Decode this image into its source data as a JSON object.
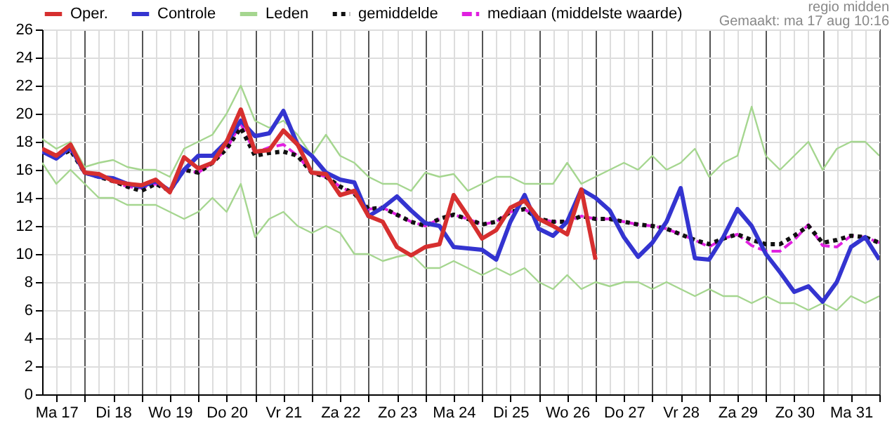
{
  "chart_data": {
    "type": "line",
    "annotations": [
      "regio midden",
      "Gemaakt: ma 17 aug 10:16"
    ],
    "categories": [
      null,
      "Ma 17",
      null,
      null,
      null,
      "Di 18",
      null,
      null,
      null,
      "Wo 19",
      null,
      null,
      null,
      "Do 20",
      null,
      null,
      null,
      "Vr 21",
      null,
      null,
      null,
      "Za 22",
      null,
      null,
      null,
      "Zo 23",
      null,
      null,
      null,
      "Ma 24",
      null,
      null,
      null,
      "Di 25",
      null,
      null,
      null,
      "Wo 26",
      null,
      null,
      null,
      "Do 27",
      null,
      null,
      null,
      "Vr 28",
      null,
      null,
      null,
      "Za 29",
      null,
      null,
      null,
      "Zo 30",
      null,
      null,
      null,
      "Ma 31",
      null,
      null
    ],
    "ylim": [
      0,
      26
    ],
    "yticks": [
      0,
      2,
      4,
      6,
      8,
      10,
      12,
      14,
      16,
      18,
      20,
      22,
      24,
      26
    ],
    "grid": true,
    "legend": "top",
    "series": [
      {
        "name": "Oper.",
        "color": "#d62f2f",
        "values": [
          17.5,
          17.0,
          17.8,
          15.8,
          15.7,
          15.2,
          15.0,
          14.9,
          15.3,
          14.4,
          16.9,
          16.1,
          16.5,
          18.0,
          20.3,
          17.3,
          17.4,
          18.8,
          17.8,
          15.8,
          15.7,
          14.2,
          14.5,
          12.7,
          12.3,
          10.5,
          9.9,
          10.5,
          10.7,
          14.2,
          12.7,
          11.1,
          11.7,
          13.3,
          13.8,
          12.5,
          12.0,
          11.4,
          14.6,
          9.6,
          null,
          null,
          null,
          null,
          null,
          null,
          null,
          null,
          null,
          null,
          null,
          null,
          null,
          null,
          null,
          null,
          null,
          null,
          null,
          null
        ]
      },
      {
        "name": "Controle",
        "color": "#3434d0",
        "values": [
          17.3,
          16.8,
          17.6,
          15.8,
          15.5,
          15.4,
          15.0,
          14.8,
          15.2,
          14.5,
          16.0,
          17.0,
          17.0,
          18.0,
          19.5,
          18.4,
          18.6,
          20.2,
          17.8,
          17.0,
          15.8,
          15.3,
          15.1,
          12.7,
          13.3,
          14.1,
          13.1,
          12.2,
          12.0,
          10.5,
          10.4,
          10.3,
          9.6,
          12.3,
          14.2,
          11.8,
          11.3,
          12.3,
          14.6,
          14.0,
          13.1,
          11.2,
          9.8,
          10.8,
          12.3,
          14.7,
          9.7,
          9.6,
          11.2,
          13.2,
          12.0,
          10.0,
          8.7,
          7.3,
          7.7,
          6.6,
          8.0,
          10.5,
          11.2,
          9.6
        ]
      },
      {
        "name": "Leden",
        "color": "#a5d68f",
        "line_style": "solid",
        "values": [
          18.2,
          17.5,
          18.0,
          16.2,
          16.5,
          16.7,
          16.2,
          16.0,
          16.0,
          15.5,
          17.5,
          18.0,
          18.5,
          20.0,
          22.0,
          19.5,
          19.0,
          19.5,
          18.5,
          17.0,
          18.5,
          17.0,
          16.5,
          15.5,
          15.0,
          15.0,
          14.5,
          15.8,
          15.5,
          15.7,
          14.5,
          15.0,
          15.5,
          15.5,
          15.0,
          15.0,
          15.0,
          16.5,
          15.0,
          15.5,
          16.0,
          16.5,
          16.0,
          17.0,
          16.0,
          16.5,
          17.5,
          15.5,
          16.5,
          17.0,
          20.5,
          17.0,
          16.0,
          17.0,
          18.0,
          16.0,
          17.5,
          18.0,
          18.0,
          17.0
        ]
      },
      {
        "name": "gemiddelde",
        "color": "#111111",
        "line_style": "dotted",
        "values": [
          17.3,
          16.9,
          17.4,
          15.8,
          15.5,
          15.2,
          14.8,
          14.5,
          15.0,
          14.5,
          16.0,
          15.8,
          16.5,
          17.5,
          19.0,
          17.0,
          17.2,
          17.3,
          17.0,
          15.8,
          15.5,
          14.8,
          14.3,
          13.2,
          13.3,
          12.8,
          12.3,
          12.0,
          12.5,
          12.8,
          12.5,
          12.1,
          12.3,
          13.0,
          13.2,
          12.5,
          12.3,
          12.3,
          12.7,
          12.5,
          12.5,
          12.3,
          12.1,
          12.0,
          11.8,
          11.4,
          11.0,
          10.7,
          11.1,
          11.4,
          11.0,
          10.7,
          10.7,
          11.3,
          12.0,
          10.8,
          11.0,
          11.3,
          11.2,
          10.8
        ]
      },
      {
        "name": "mediaan (middelste waarde)",
        "color": "#e020e0",
        "line_style": "dashed",
        "values": [
          17.3,
          16.9,
          17.4,
          15.8,
          15.5,
          15.2,
          14.8,
          14.7,
          15.0,
          14.5,
          16.0,
          15.8,
          16.5,
          17.5,
          19.3,
          17.2,
          17.6,
          17.8,
          17.0,
          15.8,
          15.5,
          14.8,
          14.3,
          13.2,
          13.3,
          12.8,
          12.3,
          12.0,
          12.5,
          12.8,
          12.5,
          12.1,
          12.3,
          13.0,
          13.2,
          12.5,
          12.3,
          12.3,
          12.7,
          12.5,
          12.5,
          12.3,
          12.1,
          12.0,
          11.8,
          11.4,
          11.0,
          10.5,
          11.1,
          11.4,
          10.6,
          10.2,
          10.2,
          11.0,
          12.1,
          10.6,
          10.5,
          11.3,
          11.2,
          10.8
        ]
      },
      {
        "color": "#a5d68f",
        "line_style": "solid",
        "values": [
          16.5,
          15.0,
          16.0,
          15.0,
          14.0,
          14.0,
          13.5,
          13.5,
          13.5,
          13.0,
          12.5,
          13.0,
          14.0,
          13.0,
          15.0,
          11.2,
          12.5,
          13.0,
          12.0,
          11.5,
          12.0,
          11.5,
          10.0,
          10.0,
          9.5,
          9.8,
          10.0,
          9.0,
          9.0,
          9.5,
          9.0,
          8.5,
          9.0,
          8.5,
          9.0,
          8.0,
          7.5,
          8.5,
          7.5,
          8.0,
          7.7,
          8.0,
          8.0,
          7.5,
          8.0,
          7.5,
          7.0,
          7.5,
          7.0,
          7.0,
          6.5,
          7.0,
          6.5,
          6.5,
          6.0,
          6.5,
          6.0,
          7.0,
          6.5,
          7.0
        ]
      }
    ]
  }
}
